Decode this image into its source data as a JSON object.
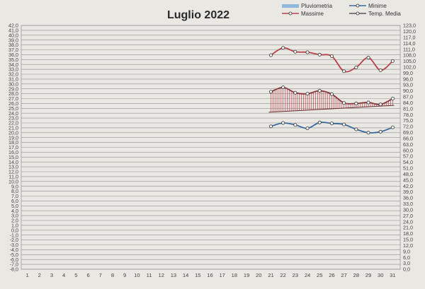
{
  "chart_data": {
    "type": "line",
    "title": "Luglio 2022",
    "x_ticks": [
      "1",
      "2",
      "3",
      "4",
      "5",
      "6",
      "7",
      "8",
      "9",
      "10",
      "11",
      "12",
      "13",
      "14",
      "15",
      "16",
      "17",
      "18",
      "19",
      "20",
      "21",
      "22",
      "23",
      "24",
      "25",
      "26",
      "27",
      "28",
      "29",
      "30",
      "31"
    ],
    "y_left": {
      "min": -8.0,
      "max": 42.0,
      "step": 1.0,
      "ticks": [
        "42,0",
        "41,0",
        "40,0",
        "39,0",
        "38,0",
        "37,0",
        "36,0",
        "35,0",
        "34,0",
        "33,0",
        "32,0",
        "31,0",
        "30,0",
        "29,0",
        "28,0",
        "27,0",
        "26,0",
        "25,0",
        "24,0",
        "23,0",
        "22,0",
        "21,0",
        "20,0",
        "19,0",
        "18,0",
        "17,0",
        "16,0",
        "15,0",
        "14,0",
        "13,0",
        "12,0",
        "11,0",
        "10,0",
        "9,0",
        "8,0",
        "7,0",
        "6,0",
        "5,0",
        "4,0",
        "3,0",
        "2,0",
        "1,0",
        "0,0",
        "-1,0",
        "-2,0",
        "-3,0",
        "-4,0",
        "-5,0",
        "-6,0",
        "-7,0",
        "-8,0"
      ]
    },
    "y_right": {
      "min": 0.0,
      "max": 123.0,
      "ticks": [
        "123,0",
        "120,0",
        "117,0",
        "114,0",
        "111,0",
        "108,0",
        "105,0",
        "102,0",
        "99,0",
        "96,0",
        "93,0",
        "90,0",
        "87,0",
        "84,0",
        "81,0",
        "78,0",
        "75,0",
        "72,0",
        "69,0",
        "66,0",
        "63,0",
        "60,0",
        "57,0",
        "54,0",
        "51,0",
        "48,0",
        "45,0",
        "42,0",
        "39,0",
        "36,0",
        "33,0",
        "30,0",
        "27,0",
        "24,0",
        "21,0",
        "18,0",
        "15,0",
        "12,0",
        "9,0",
        "6,0",
        "3,0",
        "0,0"
      ]
    },
    "legend": [
      {
        "name": "Pluviometria",
        "color": "#8fb8dc",
        "kind": "bar"
      },
      {
        "name": "Minime",
        "color": "#3b6aa0",
        "kind": "line"
      },
      {
        "name": "Massime",
        "color": "#b8404a",
        "kind": "line"
      },
      {
        "name": "Temp. Media",
        "color": "#555555",
        "kind": "line"
      }
    ],
    "legend_position": "top-right",
    "series": [
      {
        "name": "Massime",
        "color": "#b8404a",
        "x": [
          21,
          22,
          23,
          24,
          25,
          26,
          27,
          28,
          29,
          30,
          31
        ],
        "values": [
          35.9,
          37.4,
          36.6,
          36.5,
          36.0,
          35.7,
          32.6,
          33.4,
          35.4,
          32.8,
          34.7
        ]
      },
      {
        "name": "Temp. Media",
        "color": "#8a3840",
        "x": [
          21,
          22,
          23,
          24,
          25,
          26,
          27,
          28,
          29,
          30,
          31
        ],
        "values": [
          28.4,
          29.3,
          28.2,
          28.0,
          28.6,
          27.9,
          26.1,
          26.0,
          26.2,
          25.8,
          27.0
        ]
      },
      {
        "name": "Minime",
        "color": "#3b6aa0",
        "x": [
          21,
          22,
          23,
          24,
          25,
          26,
          27,
          28,
          29,
          30,
          31
        ],
        "values": [
          21.3,
          22.0,
          21.6,
          20.9,
          22.1,
          21.9,
          21.7,
          20.7,
          20.0,
          20.2,
          21.1
        ]
      }
    ],
    "reference_line": {
      "x": [
        21,
        31
      ],
      "values": [
        24.2,
        25.6
      ]
    },
    "grid": true
  }
}
